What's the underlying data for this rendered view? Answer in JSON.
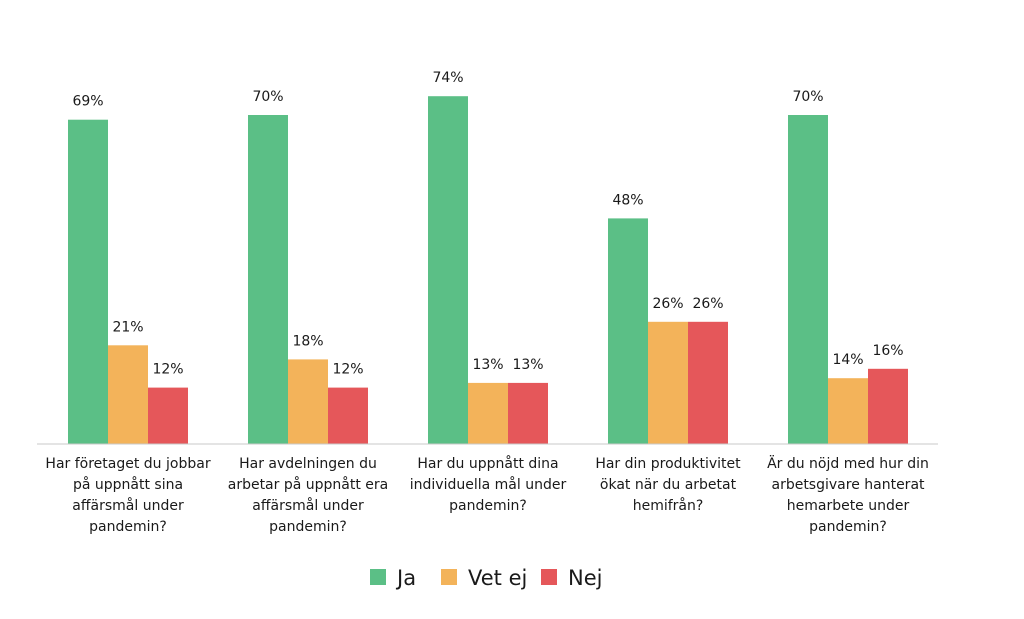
{
  "chart_data": {
    "type": "bar",
    "title": "",
    "xlabel": "",
    "ylabel": "",
    "ylim": [
      0,
      80
    ],
    "grid": false,
    "legend_position": "bottom-center",
    "unit_suffix": "%",
    "categories": [
      [
        "Har företaget du jobbar",
        "på uppnått sina",
        "affärsmål under",
        "pandemin?"
      ],
      [
        "Har avdelningen du",
        "arbetar på uppnått era",
        "affärsmål under",
        "pandemin?"
      ],
      [
        "Har du uppnått dina",
        "individuella mål under",
        "pandemin?"
      ],
      [
        "Har din produktivitet",
        "ökat när du arbetat",
        "hemifrån?"
      ],
      [
        "Är du nöjd med hur din",
        "arbetsgivare hanterat",
        "hemarbete under",
        "pandemin?"
      ]
    ],
    "series": [
      {
        "name": "Ja",
        "color": "#5bbf86",
        "values": [
          69,
          70,
          74,
          48,
          70
        ]
      },
      {
        "name": "Vet ej",
        "color": "#f3b35a",
        "values": [
          21,
          18,
          13,
          26,
          14
        ]
      },
      {
        "name": "Nej",
        "color": "#e5575a",
        "values": [
          12,
          12,
          13,
          26,
          16
        ]
      }
    ],
    "axis_color": "#c8c8c8"
  }
}
